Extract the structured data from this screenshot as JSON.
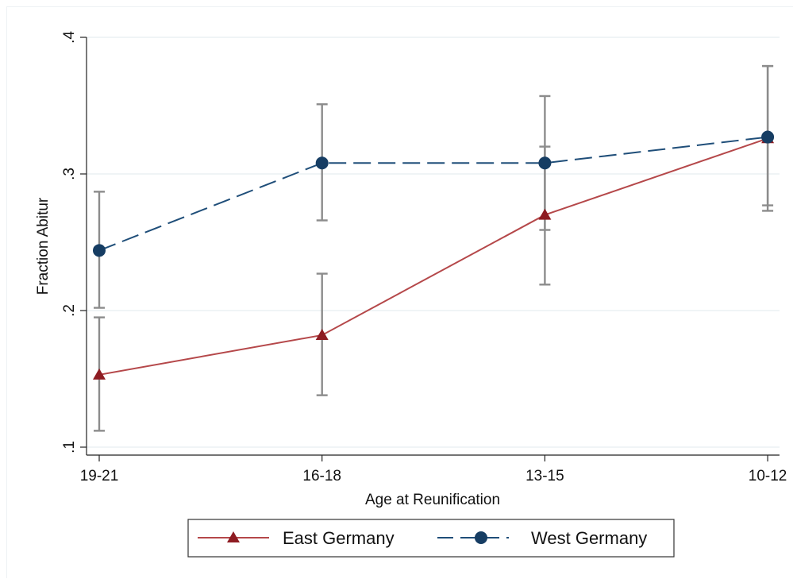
{
  "chart_data": {
    "type": "line",
    "title": "",
    "xlabel": "Age at Reunification",
    "ylabel": "Fraction Abitur",
    "categories": [
      "19-21",
      "16-18",
      "13-15",
      "10-12"
    ],
    "ylim": [
      0.1,
      0.4
    ],
    "yticks": [
      0.1,
      0.2,
      0.3,
      0.4
    ],
    "ytick_labels": [
      ".1",
      ".2",
      ".3",
      ".4"
    ],
    "grid": true,
    "legend_position": "bottom",
    "series": [
      {
        "name": "East Germany",
        "marker": "triangle",
        "line_style": "solid",
        "color": "#b5484a",
        "values": [
          0.153,
          0.182,
          0.27,
          0.326
        ],
        "ci_low": [
          0.112,
          0.138,
          0.219,
          0.273
        ],
        "ci_high": [
          0.195,
          0.227,
          0.32,
          0.379
        ]
      },
      {
        "name": "West Germany",
        "marker": "circle",
        "line_style": "dashed",
        "color": "#1f4e79",
        "values": [
          0.244,
          0.308,
          0.308,
          0.327
        ],
        "ci_low": [
          0.202,
          0.266,
          0.259,
          0.277
        ],
        "ci_high": [
          0.287,
          0.351,
          0.357,
          0.379
        ]
      }
    ],
    "errorbar_color": "#8c8c8c",
    "grid_color": "#e8edf0",
    "axis_color": "#222222"
  }
}
